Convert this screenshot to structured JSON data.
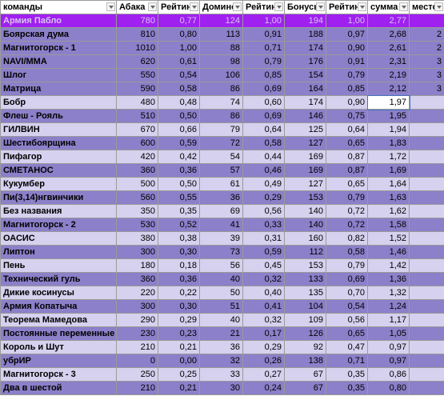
{
  "headers": [
    "команды",
    "Абака",
    "Рейтинг",
    "Домино",
    "Рейтинг",
    "Бонусы",
    "Рейтинг",
    "сумма",
    "место"
  ],
  "rows": [
    {
      "cells": [
        "Армия Пабло",
        "780",
        "0,77",
        "124",
        "1,00",
        "194",
        "1,00",
        "2,77",
        ""
      ],
      "style": "top"
    },
    {
      "cells": [
        "Боярская дума",
        "810",
        "0,80",
        "113",
        "0,91",
        "188",
        "0,97",
        "2,68",
        "2"
      ],
      "style": "dark"
    },
    {
      "cells": [
        "Магнитогорск - 1",
        "1010",
        "1,00",
        "88",
        "0,71",
        "174",
        "0,90",
        "2,61",
        "2"
      ],
      "style": "dark"
    },
    {
      "cells": [
        "NAVI/MMA",
        "620",
        "0,61",
        "98",
        "0,79",
        "176",
        "0,91",
        "2,31",
        "3"
      ],
      "style": "dark"
    },
    {
      "cells": [
        "Шлог",
        "550",
        "0,54",
        "106",
        "0,85",
        "154",
        "0,79",
        "2,19",
        "3"
      ],
      "style": "dark"
    },
    {
      "cells": [
        "Матрица",
        "590",
        "0,58",
        "86",
        "0,69",
        "164",
        "0,85",
        "2,12",
        "3"
      ],
      "style": "dark"
    },
    {
      "cells": [
        "Бобр",
        "480",
        "0,48",
        "74",
        "0,60",
        "174",
        "0,90",
        "1,97",
        ""
      ],
      "style": "light"
    },
    {
      "cells": [
        "Флеш - Рояль",
        "510",
        "0,50",
        "86",
        "0,69",
        "146",
        "0,75",
        "1,95",
        ""
      ],
      "style": "dark"
    },
    {
      "cells": [
        "ГИЛВИН",
        "670",
        "0,66",
        "79",
        "0,64",
        "125",
        "0,64",
        "1,94",
        ""
      ],
      "style": "light"
    },
    {
      "cells": [
        "Шестибоярщина",
        "600",
        "0,59",
        "72",
        "0,58",
        "127",
        "0,65",
        "1,83",
        ""
      ],
      "style": "dark"
    },
    {
      "cells": [
        "Пифагор",
        "420",
        "0,42",
        "54",
        "0,44",
        "169",
        "0,87",
        "1,72",
        ""
      ],
      "style": "light"
    },
    {
      "cells": [
        "СМЕТАНОС",
        "360",
        "0,36",
        "57",
        "0,46",
        "169",
        "0,87",
        "1,69",
        ""
      ],
      "style": "dark"
    },
    {
      "cells": [
        "Кукумбер",
        "500",
        "0,50",
        "61",
        "0,49",
        "127",
        "0,65",
        "1,64",
        ""
      ],
      "style": "light"
    },
    {
      "cells": [
        "Пи(3,14)нгвинчики",
        "560",
        "0,55",
        "36",
        "0,29",
        "153",
        "0,79",
        "1,63",
        ""
      ],
      "style": "dark"
    },
    {
      "cells": [
        "Без названия",
        "350",
        "0,35",
        "69",
        "0,56",
        "140",
        "0,72",
        "1,62",
        ""
      ],
      "style": "light"
    },
    {
      "cells": [
        "Магнитогорск - 2",
        "530",
        "0,52",
        "41",
        "0,33",
        "140",
        "0,72",
        "1,58",
        ""
      ],
      "style": "dark"
    },
    {
      "cells": [
        "ОАСИС",
        "380",
        "0,38",
        "39",
        "0,31",
        "160",
        "0,82",
        "1,52",
        ""
      ],
      "style": "light"
    },
    {
      "cells": [
        "Липтон",
        "300",
        "0,30",
        "73",
        "0,59",
        "112",
        "0,58",
        "1,46",
        ""
      ],
      "style": "dark"
    },
    {
      "cells": [
        "Пень",
        "180",
        "0,18",
        "56",
        "0,45",
        "153",
        "0,79",
        "1,42",
        ""
      ],
      "style": "light"
    },
    {
      "cells": [
        "Технический гуль",
        "360",
        "0,36",
        "40",
        "0,32",
        "133",
        "0,69",
        "1,36",
        ""
      ],
      "style": "dark"
    },
    {
      "cells": [
        "Дикие косинусы",
        "220",
        "0,22",
        "50",
        "0,40",
        "135",
        "0,70",
        "1,32",
        ""
      ],
      "style": "light"
    },
    {
      "cells": [
        "Армия Копатыча",
        "300",
        "0,30",
        "51",
        "0,41",
        "104",
        "0,54",
        "1,24",
        ""
      ],
      "style": "dark"
    },
    {
      "cells": [
        "Теорема Мамедова",
        "290",
        "0,29",
        "40",
        "0,32",
        "109",
        "0,56",
        "1,17",
        ""
      ],
      "style": "light"
    },
    {
      "cells": [
        "Постоянные переменные",
        "230",
        "0,23",
        "21",
        "0,17",
        "126",
        "0,65",
        "1,05",
        ""
      ],
      "style": "dark"
    },
    {
      "cells": [
        "Король и Шут",
        "210",
        "0,21",
        "36",
        "0,29",
        "92",
        "0,47",
        "0,97",
        ""
      ],
      "style": "light"
    },
    {
      "cells": [
        "убрИР",
        "0",
        "0,00",
        "32",
        "0,26",
        "138",
        "0,71",
        "0,97",
        ""
      ],
      "style": "dark"
    },
    {
      "cells": [
        "Магнитогорск - 3",
        "250",
        "0,25",
        "33",
        "0,27",
        "67",
        "0,35",
        "0,86",
        ""
      ],
      "style": "light"
    },
    {
      "cells": [
        "Два в шестой",
        "210",
        "0,21",
        "30",
        "0,24",
        "67",
        "0,35",
        "0,80",
        ""
      ],
      "style": "dark"
    }
  ],
  "colors": {
    "top": "#a020f0",
    "dark": "#8b80c9",
    "light": "#d5d1ee"
  },
  "selected": {
    "row": 6,
    "col": 7
  }
}
